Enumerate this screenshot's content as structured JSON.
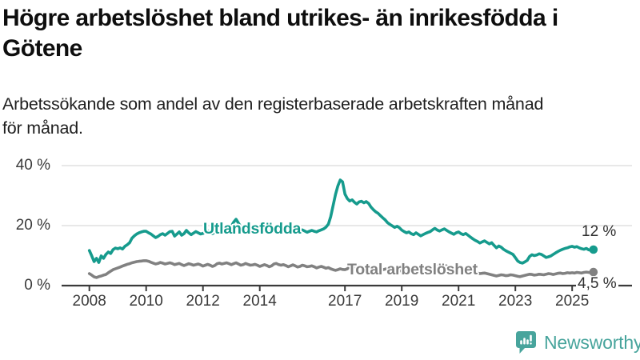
{
  "header": {
    "title_lines": [
      "Högre arbetslöshet bland utrikes- än inrikesfödda i",
      "Götene"
    ],
    "subtitle_lines": [
      "Arbetssökande som andel av den registerbaserade arbetskraften månad",
      "för månad."
    ]
  },
  "branding": {
    "wordmark": "Newsworthy",
    "logo_icon": "bar-chart-speech-bubble-icon",
    "brand_color": "#47a49c"
  },
  "chart_data": {
    "type": "line",
    "title": "Högre arbetslöshet bland utrikes- än inrikesfödda i Götene",
    "subtitle": "Arbetssökande som andel av den registerbaserade arbetskraften månad för månad.",
    "x_unit": "month",
    "x_start": "2008-01",
    "x_end": "2025-10",
    "ylim": [
      0,
      40
    ],
    "grid": "horizontal",
    "legend_position": "inline-labels",
    "axis_color": "#3a3a3a",
    "gridline_color": "#d9d9d9",
    "yticks": [
      {
        "value": 0,
        "label": "0 %"
      },
      {
        "value": 20,
        "label": "20 %"
      },
      {
        "value": 40,
        "label": "40 %"
      }
    ],
    "xticks": [
      {
        "year": 2008,
        "label": "2008"
      },
      {
        "year": 2010,
        "label": "2010"
      },
      {
        "year": 2012,
        "label": "2012"
      },
      {
        "year": 2014,
        "label": "2014"
      },
      {
        "year": 2017,
        "label": "2017"
      },
      {
        "year": 2019,
        "label": "2019"
      },
      {
        "year": 2021,
        "label": "2021"
      },
      {
        "year": 2023,
        "label": "2023"
      },
      {
        "year": 2025,
        "label": "2025"
      }
    ],
    "series": [
      {
        "name": "Utlandsfödda",
        "color": "#169b8d",
        "end_label": "12 %",
        "end_value": 12.0,
        "values": [
          11.7,
          9.9,
          8.0,
          9.1,
          7.7,
          9.9,
          9.1,
          10.4,
          11.2,
          10.7,
          12.0,
          12.5,
          12.3,
          12.6,
          12.2,
          13.1,
          13.6,
          14.3,
          15.8,
          16.6,
          17.2,
          17.6,
          17.9,
          18.1,
          18.1,
          17.6,
          17.2,
          16.6,
          16.0,
          16.4,
          17.0,
          17.3,
          16.8,
          17.4,
          18.0,
          18.1,
          16.5,
          17.2,
          17.9,
          16.8,
          17.3,
          18.4,
          17.6,
          17.0,
          17.5,
          18.0,
          17.6,
          17.2,
          17.4,
          17.9,
          18.3,
          17.7,
          17.3,
          17.8,
          18.2,
          17.8,
          18.1,
          18.6,
          19.0,
          19.4,
          19.8,
          21.2,
          22.1,
          20.8,
          19.6,
          18.9,
          18.5,
          18.2,
          18.6,
          18.9,
          18.4,
          18.0,
          18.3,
          18.7,
          19.1,
          18.5,
          17.9,
          18.3,
          18.8,
          18.4,
          17.9,
          18.2,
          18.6,
          18.3,
          17.8,
          18.3,
          18.7,
          18.0,
          17.6,
          18.1,
          18.6,
          18.2,
          17.8,
          18.1,
          18.4,
          18.1,
          17.9,
          18.3,
          18.6,
          18.9,
          19.5,
          20.5,
          23.0,
          26.7,
          30.4,
          33.2,
          35.2,
          34.6,
          30.5,
          29.0,
          28.2,
          28.6,
          27.8,
          27.2,
          27.9,
          28.1,
          27.6,
          28.0,
          27.4,
          26.2,
          25.3,
          24.6,
          24.1,
          23.3,
          22.6,
          21.9,
          21.0,
          20.4,
          19.9,
          19.4,
          19.8,
          19.3,
          18.5,
          18.0,
          17.6,
          17.9,
          17.3,
          17.0,
          17.6,
          17.1,
          16.6,
          17.0,
          17.4,
          17.7,
          18.0,
          18.6,
          19.1,
          18.5,
          18.2,
          18.6,
          18.9,
          18.4,
          17.9,
          17.5,
          17.1,
          17.6,
          17.9,
          17.3,
          17.0,
          17.4,
          16.8,
          16.2,
          15.6,
          15.1,
          14.7,
          14.2,
          14.6,
          14.9,
          14.4,
          13.9,
          14.3,
          13.4,
          12.6,
          13.2,
          12.8,
          12.1,
          11.6,
          11.2,
          10.8,
          10.4,
          9.3,
          8.2,
          7.7,
          7.5,
          7.9,
          8.4,
          9.7,
          10.3,
          10.0,
          10.2,
          10.6,
          10.4,
          9.9,
          9.4,
          9.6,
          9.9,
          10.4,
          10.9,
          11.4,
          11.8,
          12.1,
          12.4,
          12.6,
          12.9,
          13.1,
          12.8,
          13.0,
          12.6,
          12.3,
          12.1,
          12.4,
          11.9,
          11.8,
          12.0
        ]
      },
      {
        "name": "Total arbetslöshet",
        "color": "#818181",
        "end_label": "4,5 %",
        "end_value": 4.5,
        "values": [
          4.0,
          3.5,
          2.9,
          2.7,
          3.0,
          3.2,
          3.5,
          3.7,
          4.3,
          4.8,
          5.3,
          5.6,
          5.9,
          6.2,
          6.5,
          6.8,
          7.1,
          7.3,
          7.6,
          7.8,
          8.0,
          8.1,
          8.2,
          8.3,
          8.3,
          8.1,
          7.8,
          7.5,
          7.2,
          7.4,
          7.7,
          7.5,
          7.2,
          7.4,
          7.6,
          7.4,
          7.0,
          7.2,
          7.4,
          7.0,
          6.7,
          7.0,
          7.3,
          7.1,
          6.8,
          7.0,
          7.2,
          6.9,
          6.5,
          6.8,
          7.1,
          6.8,
          6.4,
          6.7,
          7.3,
          7.5,
          7.2,
          7.4,
          7.6,
          7.3,
          7.0,
          7.3,
          7.6,
          7.2,
          6.8,
          7.0,
          7.4,
          7.1,
          6.8,
          6.9,
          7.1,
          6.8,
          6.4,
          6.7,
          7.0,
          6.7,
          6.3,
          6.6,
          7.2,
          7.4,
          7.0,
          6.8,
          7.0,
          6.7,
          6.3,
          6.6,
          6.9,
          6.6,
          6.2,
          6.4,
          6.8,
          6.6,
          6.3,
          6.4,
          6.6,
          6.3,
          5.9,
          6.2,
          6.4,
          6.1,
          5.8,
          6.0,
          5.6,
          5.3,
          5.1,
          5.3,
          5.6,
          5.4,
          5.3,
          5.6,
          6.4,
          6.2,
          5.9,
          6.1,
          6.5,
          6.3,
          6.0,
          6.1,
          6.2,
          5.9,
          5.6,
          5.8,
          6.0,
          5.7,
          5.3,
          5.5,
          5.8,
          5.6,
          5.3,
          5.2,
          5.4,
          5.1,
          4.8,
          5.0,
          5.2,
          4.9,
          4.6,
          4.8,
          5.1,
          4.9,
          4.7,
          4.8,
          5.0,
          5.2,
          5.4,
          5.7,
          6.3,
          6.6,
          6.4,
          6.6,
          6.8,
          6.5,
          6.2,
          6.0,
          5.8,
          5.9,
          6.0,
          5.8,
          5.6,
          5.3,
          5.0,
          4.8,
          4.6,
          4.4,
          4.2,
          4.0,
          4.1,
          4.2,
          4.0,
          3.8,
          3.6,
          3.4,
          3.2,
          3.4,
          3.6,
          3.5,
          3.3,
          3.4,
          3.6,
          3.5,
          3.3,
          3.1,
          3.0,
          3.2,
          3.4,
          3.6,
          3.8,
          3.7,
          3.5,
          3.6,
          3.8,
          3.7,
          3.6,
          3.8,
          4.0,
          3.9,
          3.7,
          3.9,
          4.1,
          4.2,
          4.0,
          4.1,
          4.3,
          4.2,
          4.3,
          4.2,
          4.4,
          4.3,
          4.2,
          4.4,
          4.5,
          4.4,
          4.3,
          4.5
        ]
      }
    ]
  }
}
